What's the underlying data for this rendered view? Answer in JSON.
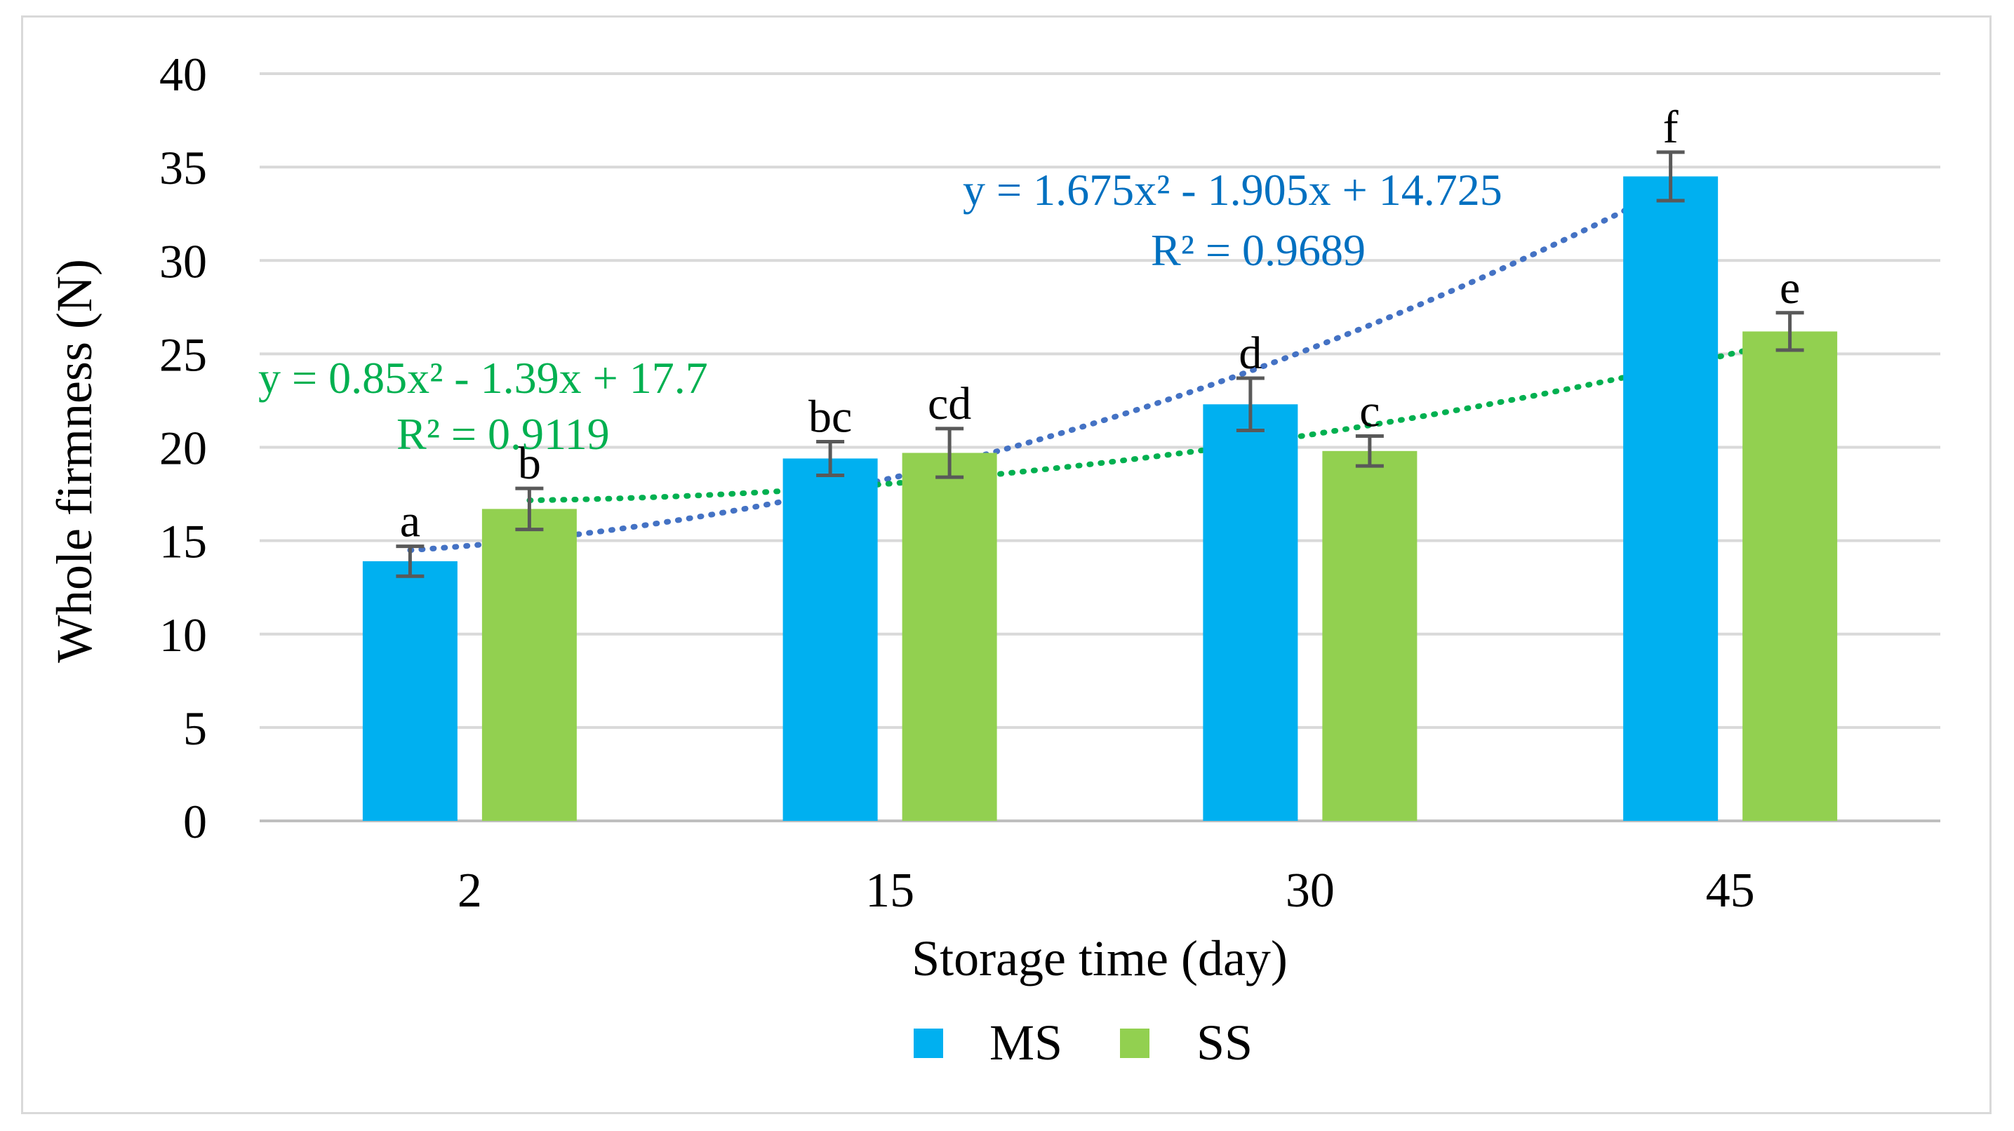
{
  "chart_data": {
    "type": "bar",
    "title": "",
    "xlabel": "Storage time (day)",
    "ylabel": "Whole firmness (N)",
    "ylim": [
      0,
      40
    ],
    "yticks": [
      0,
      5,
      10,
      15,
      20,
      25,
      30,
      35,
      40
    ],
    "categories": [
      "2",
      "15",
      "30",
      "45"
    ],
    "legend_position": "bottom",
    "series": [
      {
        "name": "MS",
        "color": "#00b0f0",
        "values": [
          13.9,
          19.4,
          22.3,
          34.5
        ],
        "errors": [
          0.8,
          0.9,
          1.4,
          1.3
        ],
        "letters": [
          "a",
          "bc",
          "d",
          "f"
        ]
      },
      {
        "name": "SS",
        "color": "#92d050",
        "values": [
          16.7,
          19.7,
          19.8,
          26.2
        ],
        "errors": [
          1.1,
          1.3,
          0.8,
          1.0
        ],
        "letters": [
          "b",
          "cd",
          "c",
          "e"
        ]
      }
    ],
    "trendlines": [
      {
        "series": "MS",
        "color": "#4472c4",
        "coefficients": [
          1.675,
          -1.905,
          14.725
        ],
        "equation": "y = 1.675x² - 1.905x + 14.725",
        "r2": "R² = 0.9689"
      },
      {
        "series": "SS",
        "color": "#00b050",
        "coefficients": [
          0.85,
          -1.39,
          17.7
        ],
        "equation": "y = 0.85x² - 1.39x + 17.7",
        "r2": "R² = 0.9119"
      }
    ]
  },
  "colors": {
    "ms_label": "#0070c0",
    "ss_label": "#00b050",
    "grid": "#d9d9d9",
    "error_bar": "#595959"
  }
}
